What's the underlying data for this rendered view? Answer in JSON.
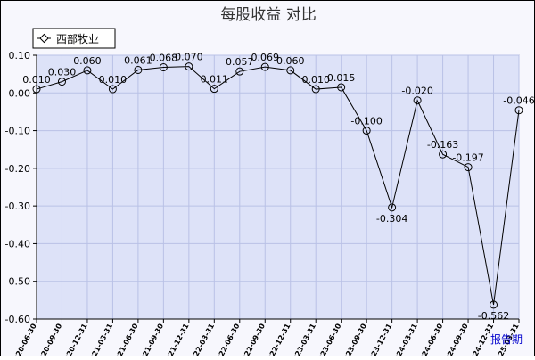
{
  "chart_data": {
    "type": "line",
    "title": "每股收益  对比",
    "xlabel": "报告期",
    "ylabel": "",
    "ylim": [
      -0.6,
      0.1
    ],
    "yticks": [
      "0.10",
      "0.00",
      "-0.10",
      "-0.20",
      "-0.30",
      "-0.40",
      "-0.50",
      "-0.60"
    ],
    "grid": true,
    "legend_position": "top-left",
    "colors": {
      "plot_bg": "#dde2f8",
      "grid": "#b9c1e6",
      "line": "#000000",
      "frame_bg": "#f7f7fd"
    },
    "categories": [
      "2020-06-30",
      "2020-09-30",
      "2020-12-31",
      "2021-03-31",
      "2021-06-30",
      "2021-09-30",
      "2021-12-31",
      "2022-03-31",
      "2022-06-30",
      "2022-09-30",
      "2022-12-31",
      "2023-03-31",
      "2023-06-30",
      "2023-09-30",
      "2023-12-31",
      "2024-03-31",
      "2024-06-30",
      "2024-09-30",
      "2024-12-31",
      "2025-03-31"
    ],
    "series": [
      {
        "name": "西部牧业",
        "values": [
          0.01,
          0.03,
          0.06,
          0.01,
          0.061,
          0.068,
          0.07,
          0.011,
          0.057,
          0.069,
          0.06,
          0.01,
          0.015,
          -0.1,
          -0.304,
          -0.02,
          -0.163,
          -0.197,
          -0.562,
          -0.046
        ],
        "labels": [
          "0.010",
          "0.030",
          "0.060",
          "0.010",
          "0.061",
          "0.068",
          "0.070",
          "0.011",
          "0.057",
          "0.069",
          "0.060",
          "0.010",
          "0.015",
          "-0.100",
          "-0.304",
          "-0.020",
          "-0.163",
          "-0.197",
          "-0.562",
          "-0.046"
        ]
      }
    ]
  }
}
